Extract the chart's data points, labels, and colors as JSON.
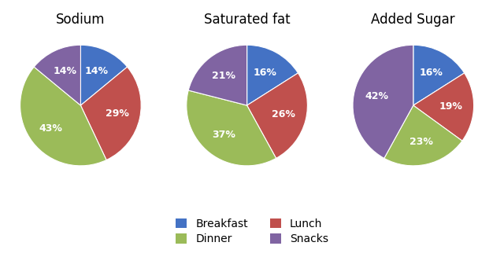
{
  "charts": [
    {
      "title": "Sodium",
      "values": [
        14,
        29,
        43,
        14
      ],
      "labels": [
        "14%",
        "29%",
        "43%",
        "14%"
      ],
      "startangle": 90
    },
    {
      "title": "Saturated fat",
      "values": [
        16,
        26,
        37,
        21
      ],
      "labels": [
        "16%",
        "26%",
        "37%",
        "21%"
      ],
      "startangle": 90
    },
    {
      "title": "Added Sugar",
      "values": [
        16,
        19,
        23,
        42
      ],
      "labels": [
        "16%",
        "19%",
        "23%",
        "42%"
      ],
      "startangle": 90
    }
  ],
  "colors": [
    "#4472C4",
    "#C0504D",
    "#9BBB59",
    "#8064A2"
  ],
  "legend_labels": [
    "Breakfast",
    "Lunch",
    "Dinner",
    "Snacks"
  ],
  "title_fontsize": 12,
  "label_fontsize": 9
}
